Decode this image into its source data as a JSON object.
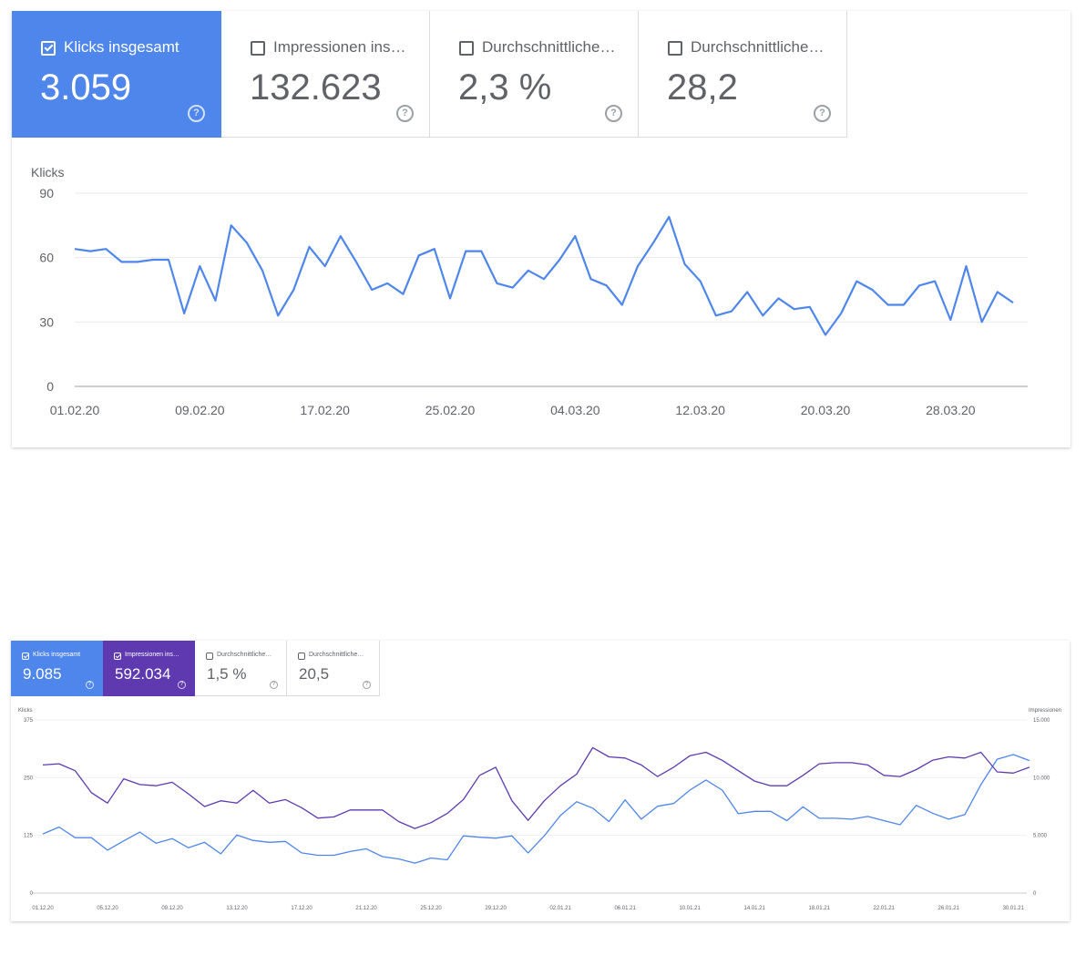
{
  "report1": {
    "cards": [
      {
        "label": "Klicks insgesamt",
        "value": "3.059",
        "active": true,
        "color": "#4f86ec"
      },
      {
        "label": "Impressionen ins…",
        "value": "132.623",
        "active": false
      },
      {
        "label": "Durchschnittliche…",
        "value": "2,3 %",
        "active": false
      },
      {
        "label": "Durchschnittliche…",
        "value": "28,2",
        "active": false
      }
    ]
  },
  "report2": {
    "cards": [
      {
        "label": "Klicks insgesamt",
        "value": "9.085",
        "active": true,
        "color": "#4f86ec"
      },
      {
        "label": "Impressionen ins…",
        "value": "592.034",
        "active": true,
        "color": "#5f39b0"
      },
      {
        "label": "Durchschnittliche…",
        "value": "1,5 %",
        "active": false
      },
      {
        "label": "Durchschnittliche…",
        "value": "20,5",
        "active": false
      }
    ]
  },
  "chart_data": [
    {
      "type": "line",
      "ylabel": "Klicks",
      "yticks": [
        "90",
        "60",
        "30",
        "0"
      ],
      "ylim": [
        0,
        90
      ],
      "xticks": [
        "01.02.20",
        "09.02.20",
        "17.02.20",
        "25.02.20",
        "04.03.20",
        "12.03.20",
        "20.03.20",
        "28.03.20"
      ],
      "grid": true,
      "series": [
        {
          "color": "#4f86ec",
          "values": [
            64,
            63,
            64,
            58,
            58,
            59,
            59,
            34,
            56,
            40,
            75,
            67,
            54,
            33,
            45,
            65,
            56,
            70,
            58,
            45,
            48,
            43,
            61,
            64,
            41,
            63,
            63,
            48,
            46,
            54,
            50,
            59,
            70,
            50,
            47,
            38,
            56,
            67,
            79,
            57,
            49,
            33,
            35,
            44,
            33,
            41,
            36,
            37,
            24,
            34,
            49,
            45,
            38,
            38,
            47,
            49,
            31,
            56,
            30,
            44,
            39
          ]
        }
      ]
    },
    {
      "type": "line",
      "ylabel_left": "Klicks",
      "ylabel_right": "Impressionen",
      "yticks_left": [
        "375",
        "250",
        "125",
        "0"
      ],
      "yticks_right": [
        "15.000",
        "10.000",
        "5.000",
        "0"
      ],
      "ylim_left": [
        0,
        375
      ],
      "ylim_right": [
        0,
        15000
      ],
      "xticks": [
        "01.12.20",
        "05.12.20",
        "09.12.20",
        "13.12.20",
        "17.12.20",
        "21.12.20",
        "25.12.20",
        "29.12.20",
        "02.01.21",
        "06.01.21",
        "10.01.21",
        "14.01.21",
        "18.01.21",
        "22.01.21",
        "26.01.21",
        "30.01.21"
      ],
      "grid": true,
      "series": [
        {
          "axis": "left",
          "color": "#4f86ec",
          "values": [
            128,
            143,
            120,
            120,
            93,
            113,
            132,
            108,
            118,
            98,
            110,
            85,
            126,
            114,
            110,
            112,
            87,
            82,
            82,
            90,
            96,
            79,
            74,
            65,
            76,
            72,
            124,
            121,
            119,
            124,
            87,
            124,
            168,
            198,
            184,
            155,
            202,
            160,
            188,
            194,
            223,
            245,
            223,
            172,
            177,
            177,
            157,
            187,
            162,
            162,
            160,
            166,
            157,
            148,
            190,
            173,
            160,
            170,
            235,
            290,
            300,
            287
          ]
        },
        {
          "axis": "right",
          "color": "#5f39b0",
          "values": [
            11100,
            11200,
            10600,
            8700,
            7800,
            9900,
            9400,
            9300,
            9600,
            8600,
            7500,
            8000,
            7800,
            8900,
            7800,
            8100,
            7400,
            6500,
            6600,
            7200,
            7200,
            7200,
            6200,
            5600,
            6100,
            6900,
            8100,
            10200,
            10900,
            8000,
            6300,
            8000,
            9300,
            10300,
            12600,
            11800,
            11700,
            11100,
            10100,
            10900,
            11900,
            12200,
            11500,
            10600,
            9700,
            9300,
            9300,
            10200,
            11200,
            11300,
            11300,
            11100,
            10200,
            10100,
            10700,
            11500,
            11800,
            11700,
            12200,
            10500,
            10400,
            10900
          ]
        }
      ]
    }
  ]
}
